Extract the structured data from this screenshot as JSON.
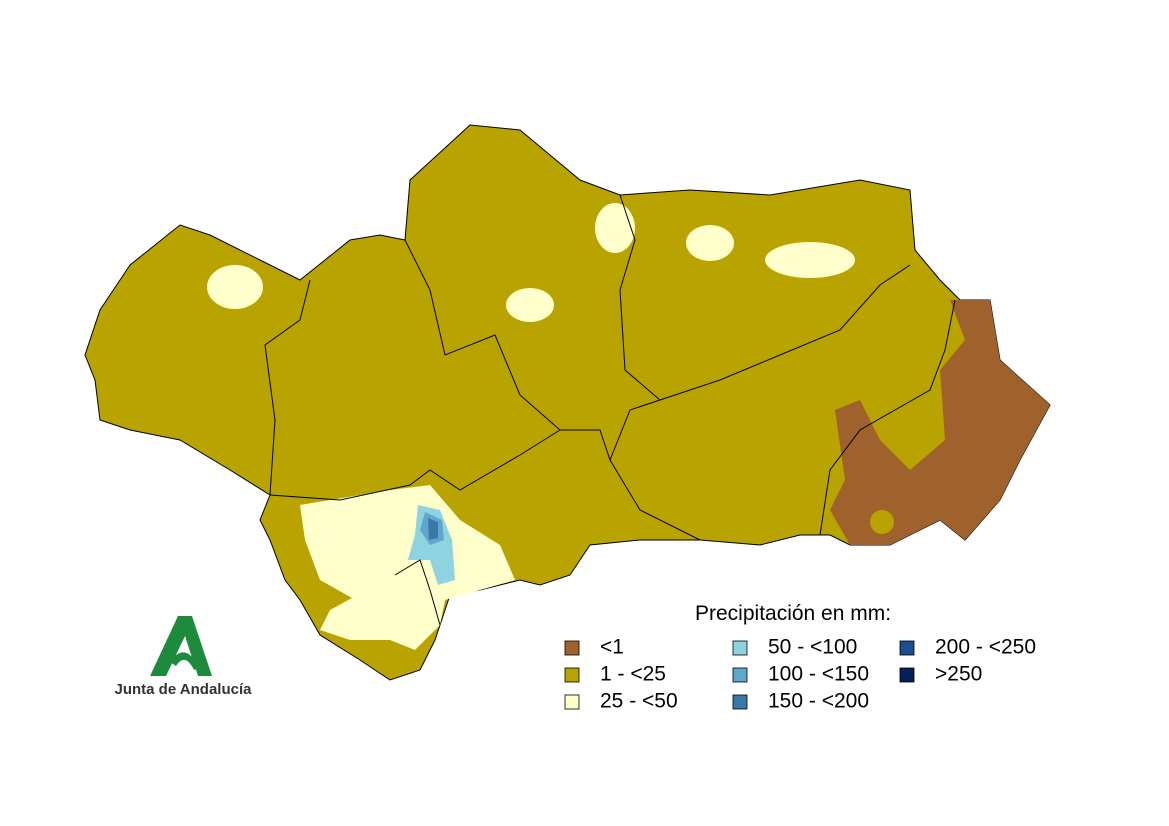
{
  "legend": {
    "title": "Precipitación en mm:",
    "items": [
      {
        "label": "<1",
        "color": "#a0622d"
      },
      {
        "label": "1 - <25",
        "color": "#b9a300"
      },
      {
        "label": "25 - <50",
        "color": "#ffffcc"
      },
      {
        "label": "50 - <100",
        "color": "#8fd3e0"
      },
      {
        "label": "100 - <150",
        "color": "#5fa8cc"
      },
      {
        "label": "150 - <200",
        "color": "#3a78a8"
      },
      {
        "label": "200 - <250",
        "color": "#1b4e8c"
      },
      {
        "label": ">250",
        "color": "#08205a"
      }
    ]
  },
  "logo": {
    "text": "Junta de Andalucía"
  }
}
